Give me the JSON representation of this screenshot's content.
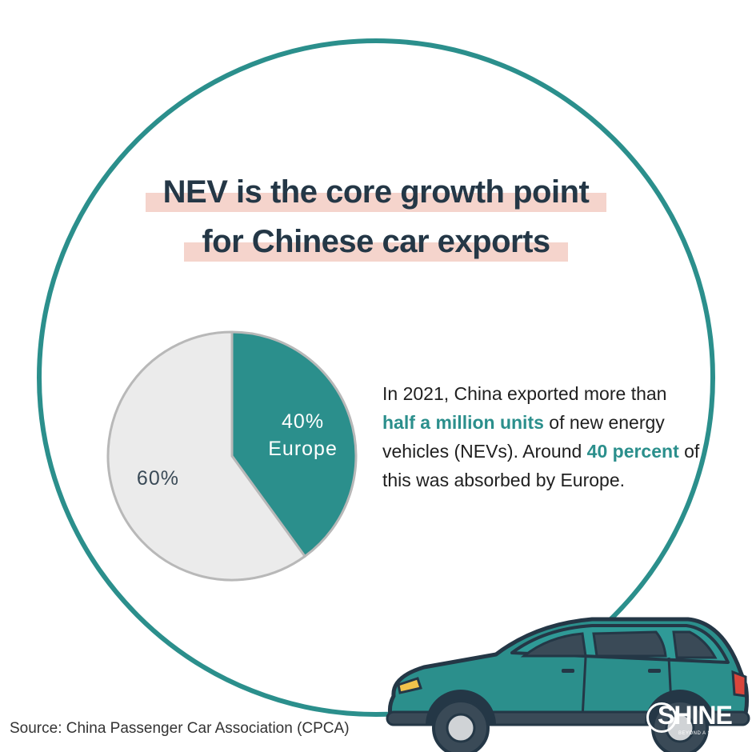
{
  "title": {
    "line1": "NEV is the core growth point",
    "line2": "for Chinese car exports"
  },
  "chart_data": {
    "type": "pie",
    "slices": [
      {
        "label": "Europe",
        "value": 40,
        "display": "40%",
        "color": "#2b8f8c"
      },
      {
        "label": "",
        "value": 60,
        "display": "60%",
        "color": "#ebebeb"
      }
    ]
  },
  "description": {
    "p1": "In 2021, China exported more than ",
    "em1": "half a million units",
    "p2": " of new energy vehicles (NEVs). Around ",
    "em2": "40 percent",
    "p3": " of this was absorbed by Europe."
  },
  "source": "Source: China Passenger Car Association (CPCA)",
  "logo": {
    "text": "SHINE",
    "tagline": "BEYOND A SINGLE STORY"
  },
  "colors": {
    "accent": "#2b8f8c",
    "title": "#243746",
    "highlight": "#f5d4cc",
    "pie_other": "#ebebeb"
  }
}
